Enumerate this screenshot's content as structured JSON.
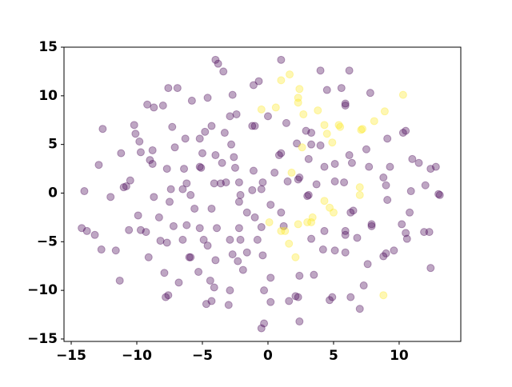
{
  "chart_data": {
    "type": "scatter",
    "xlim": [
      -15.55,
      14.7
    ],
    "ylim": [
      -15.25,
      15
    ],
    "xticks": [
      {
        "value": -15,
        "label": "−15"
      },
      {
        "value": -10,
        "label": "−10"
      },
      {
        "value": -5,
        "label": "−5"
      },
      0,
      5,
      10
    ],
    "yticks": [
      {
        "value": -15,
        "label": "−15"
      },
      {
        "value": -10,
        "label": "−10"
      },
      {
        "value": -5,
        "label": "−5"
      },
      0,
      5,
      10,
      15
    ],
    "alpha": 0.35,
    "series": [
      {
        "color": "#440154",
        "x": [
          -4.0,
          -3.8,
          -3.4,
          1.0,
          4.0,
          6.2,
          -7.6,
          -6.9,
          -1.1,
          -0.7,
          -2.7,
          -4.6,
          4.5,
          5.6,
          7.8,
          -9.2,
          -8.7,
          -8.0,
          -5.8,
          -2.4,
          -2.9,
          0,
          5.9,
          5.9,
          -12.6,
          -10.2,
          -10.1,
          -7.3,
          -4.3,
          -1.2,
          -1.0,
          -4.8,
          -3.3,
          1.4,
          2.9,
          3.3,
          9.1,
          10.5,
          10.3,
          -9.8,
          -6.3,
          -5.2,
          -2.8,
          2.2,
          3.3,
          4.0,
          7.5,
          -11.2,
          -9.7,
          -8.8,
          -7.1,
          -5.0,
          -4.0,
          -2.6,
          1.0,
          0.85,
          6.2,
          -12.9,
          -9.0,
          -8.8,
          -7.7,
          -5.2,
          -5.1,
          -6.4,
          -3.5,
          -2.5,
          -1.1,
          0.5,
          3.1,
          4.3,
          5.1,
          6.4,
          7.7,
          9.3,
          11.0,
          11.5,
          12.4,
          12.8,
          8.8,
          -10.5,
          -10.8,
          -11.0,
          -7.4,
          -6.5,
          -6.2,
          -4.1,
          -3.6,
          -3.2,
          -2.2,
          -0.4,
          1.5,
          2.3,
          3.7,
          5.1,
          5.8,
          9.0,
          12.0,
          -14.0,
          -12.0,
          -8.7,
          -5.9,
          -2.1,
          -2.2,
          -1.2,
          -0.5,
          3.0,
          3.1,
          2.4,
          9.1,
          10.9,
          13.0,
          13.1,
          -7.5,
          -5.6,
          -4.3,
          -1.6,
          0.2,
          1.0,
          6.5,
          6.3,
          10.8,
          -9.9,
          -8.3,
          -1.0,
          -14.2,
          -13.8,
          -13.2,
          -10.6,
          -9.7,
          -9.3,
          -7.2,
          -6.2,
          -5.2,
          -3.9,
          -2.2,
          -0.5,
          1.2,
          4.3,
          5.9,
          5.9,
          7.9,
          7.9,
          10.2,
          10.5,
          11.9,
          12.3,
          -8.2,
          -7.7,
          -6.5,
          -4.9,
          -2.9,
          -2.1,
          -0.8,
          3.3,
          6.8,
          10.6,
          -12.7,
          -11.6,
          -9.1,
          -6.0,
          -5.9,
          -4.0,
          -2.7,
          -2.3,
          -1.6,
          -0.4,
          4.2,
          5.1,
          5.9,
          8.8,
          9.0,
          9.6,
          7.6,
          12.4,
          -7.9,
          -5.3,
          -1.9,
          0.2,
          2.4,
          3.5,
          -11.3,
          -6.8,
          -4.4,
          -4.1,
          -2.9,
          -0.3,
          7.3,
          -7.6,
          -7.8,
          2.3,
          4.9,
          6.3,
          1.6,
          0.2,
          -4.7,
          -4.3,
          -3.0,
          4.7,
          7.0,
          2.4,
          -0.3,
          -0.5,
          2.1,
          -4.6
        ],
        "y": [
          13.7,
          13.3,
          12.5,
          13.7,
          12.6,
          12.6,
          10.8,
          10.8,
          11.1,
          11.5,
          10.1,
          9.8,
          10.6,
          10.8,
          10.3,
          9.1,
          8.8,
          9.0,
          9.5,
          8.1,
          7.9,
          7.9,
          9.0,
          9.2,
          6.6,
          7.0,
          6.1,
          6.8,
          6.9,
          6.9,
          6.9,
          6.3,
          6.2,
          7.2,
          6.4,
          6.2,
          5.6,
          6.4,
          6.2,
          5.3,
          5.6,
          5.6,
          5.0,
          5.1,
          5.0,
          4.9,
          4.5,
          4.1,
          4.2,
          4.4,
          4.7,
          4.1,
          3.9,
          3.7,
          4.1,
          3.9,
          3.9,
          2.9,
          3.4,
          3.0,
          2.5,
          2.7,
          2.6,
          2.5,
          3.1,
          2.6,
          2.3,
          2.1,
          3.5,
          2.7,
          3.0,
          3.1,
          2.7,
          2.7,
          3.5,
          3.1,
          2.5,
          2.7,
          1.6,
          1.3,
          0.7,
          0.6,
          0.4,
          0.4,
          1.0,
          1.0,
          1.0,
          1.1,
          1.1,
          1.1,
          1.2,
          1.4,
          0.9,
          1.2,
          1.1,
          0.8,
          0.8,
          0.2,
          -0.4,
          -0.4,
          -0.2,
          -0.2,
          -0.9,
          0.3,
          0.4,
          -0.3,
          -0.2,
          1.6,
          -0.7,
          0.2,
          -0.1,
          -0.2,
          -0.9,
          -1.6,
          -1.6,
          -2.0,
          -1.2,
          -2.0,
          -1.8,
          -2.0,
          -2.0,
          -2.3,
          -2.5,
          -2.5,
          -3.6,
          -3.9,
          -4.3,
          -3.8,
          -3.8,
          -4.0,
          -3.4,
          -3.3,
          -3.6,
          -3.6,
          -3.6,
          -3.5,
          -3.4,
          -3.9,
          -3.9,
          -4.3,
          -3.4,
          -3.2,
          -3.2,
          -4.1,
          -4.0,
          -4.0,
          -4.9,
          -5.1,
          -4.8,
          -4.8,
          -4.8,
          -4.8,
          -4.8,
          -4.7,
          -4.6,
          -4.7,
          -5.8,
          -5.9,
          -6.6,
          -6.6,
          -6.6,
          -6.9,
          -6.3,
          -7.0,
          -6.1,
          -6.4,
          -5.8,
          -5.9,
          -6.1,
          -6.5,
          -6.2,
          -5.9,
          -7.3,
          -7.7,
          -8.2,
          -8.1,
          -7.9,
          -8.7,
          -8.5,
          -8.4,
          -9.0,
          -9.2,
          -9.0,
          -9.7,
          -10.0,
          -10.0,
          -9.5,
          -10.5,
          -10.7,
          -10.7,
          -10.7,
          -10.7,
          -11.1,
          -11.2,
          -11.4,
          -11.1,
          -11.5,
          -11.0,
          -11.9,
          -13.2,
          -13.4,
          -13.9,
          -10.6,
          -5.4
        ]
      },
      {
        "color": "#fde725",
        "x": [
          1.0,
          1.65,
          2.4,
          2.3,
          2.3,
          2.7,
          -0.5,
          0.6,
          3.8,
          4.3,
          4.5,
          5.4,
          7.1,
          8.1,
          8.9,
          10.3,
          1.8,
          2.6,
          4.9,
          5.5,
          7.2,
          7.0,
          7.0,
          4.3,
          4.7,
          3.4,
          3.0,
          2.3,
          1.3,
          1.0,
          0.1,
          1.6,
          2.1,
          3.3,
          5.0,
          8.8
        ],
        "y": [
          11.6,
          12.2,
          10.7,
          9.8,
          9.3,
          8.1,
          8.6,
          8.8,
          8.5,
          7.0,
          6.1,
          7.0,
          6.5,
          7.4,
          8.4,
          10.1,
          2.1,
          4.7,
          5.2,
          6.8,
          6.6,
          0.6,
          -0.2,
          -0.8,
          -1.5,
          -2.5,
          -3.0,
          -3.2,
          -3.9,
          -3.9,
          -3.0,
          -5.2,
          -6.6,
          -3.0,
          -2.0,
          -10.5
        ]
      }
    ]
  }
}
